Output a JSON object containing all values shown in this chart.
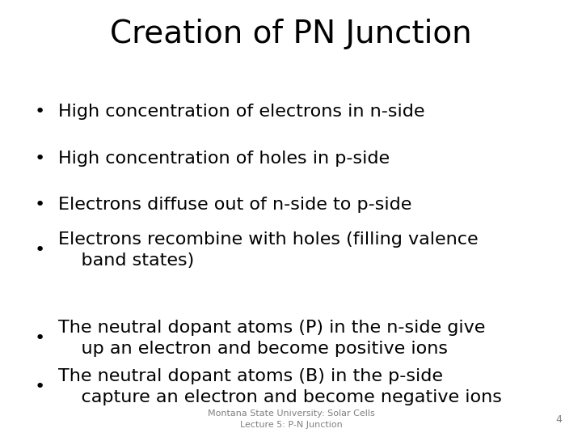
{
  "title": "Creation of PN Junction",
  "title_fontsize": 28,
  "title_font": "DejaVu Sans",
  "title_color": "#000000",
  "background_color": "#ffffff",
  "bullet_lines": [
    [
      "High concentration of electrons in n-side"
    ],
    [
      "High concentration of holes in p-side"
    ],
    [
      "Electrons diffuse out of n-side to p-side"
    ],
    [
      "Electrons recombine with holes (filling valence",
      "    band states)"
    ],
    [
      "The neutral dopant atoms (P) in the n-side give",
      "    up an electron and become positive ions"
    ],
    [
      "The neutral dopant atoms (B) in the p-side",
      "    capture an electron and become negative ions"
    ]
  ],
  "bullet_fontsize": 16,
  "bullet_font": "DejaVu Sans",
  "bullet_color": "#000000",
  "footer_text": "Montana State University: Solar Cells\nLecture 5: P-N Junction",
  "footer_fontsize": 8,
  "footer_color": "#808080",
  "page_number": "4",
  "page_number_fontsize": 9,
  "page_number_color": "#808080"
}
